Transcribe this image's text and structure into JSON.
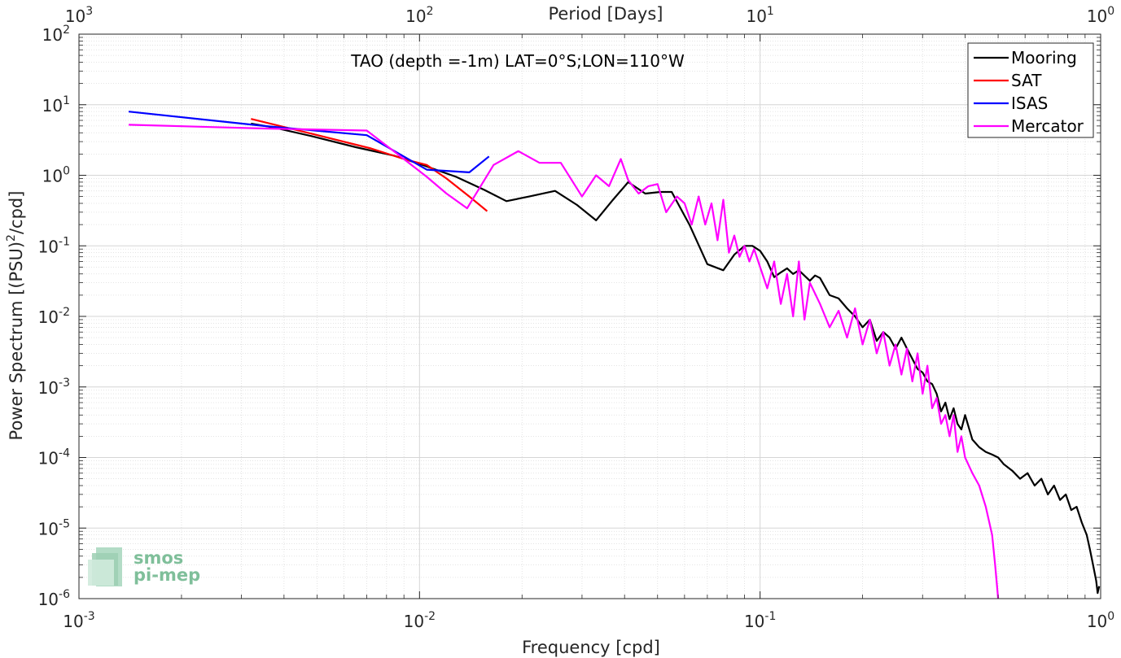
{
  "chart_data": {
    "type": "line",
    "title": "TAO (depth =-1m) LAT=0°S;LON=110°W",
    "xlabel": "Frequency [cpd]",
    "ylabel_main": "Power Spectrum [(PSU)",
    "ylabel_sup": "2",
    "ylabel_tail": "/cpd]",
    "top_xlabel": "Period [Days]",
    "xscale": "log",
    "yscale": "log",
    "xlim": [
      0.001,
      1
    ],
    "ylim": [
      1e-06,
      100
    ],
    "grid": true,
    "legend_position": "top-right",
    "x_ticks": [
      {
        "value": 0.001,
        "base": "10",
        "exp": "-3"
      },
      {
        "value": 0.01,
        "base": "10",
        "exp": "-2"
      },
      {
        "value": 0.1,
        "base": "10",
        "exp": "-1"
      },
      {
        "value": 1,
        "base": "10",
        "exp": "0"
      }
    ],
    "y_ticks": [
      {
        "value": 1e-06,
        "base": "10",
        "exp": "-6"
      },
      {
        "value": 1e-05,
        "base": "10",
        "exp": "-5"
      },
      {
        "value": 0.0001,
        "base": "10",
        "exp": "-4"
      },
      {
        "value": 0.001,
        "base": "10",
        "exp": "-3"
      },
      {
        "value": 0.01,
        "base": "10",
        "exp": "-2"
      },
      {
        "value": 0.1,
        "base": "10",
        "exp": "-1"
      },
      {
        "value": 1,
        "base": "10",
        "exp": "0"
      },
      {
        "value": 10,
        "base": "10",
        "exp": "1"
      },
      {
        "value": 100,
        "base": "10",
        "exp": "2"
      }
    ],
    "top_ticks": [
      {
        "value": 0.001,
        "base": "10",
        "exp": "3"
      },
      {
        "value": 0.01,
        "base": "10",
        "exp": "2"
      },
      {
        "value": 0.1,
        "base": "10",
        "exp": "1"
      },
      {
        "value": 1,
        "base": "10",
        "exp": "0"
      }
    ],
    "series": [
      {
        "name": "Mooring",
        "color": "#000000",
        "x": [
          0.0032,
          0.0037,
          0.0048,
          0.0065,
          0.0084,
          0.01,
          0.0128,
          0.0155,
          0.018,
          0.021,
          0.025,
          0.029,
          0.033,
          0.037,
          0.041,
          0.046,
          0.051,
          0.055,
          0.062,
          0.07,
          0.078,
          0.084,
          0.09,
          0.095,
          0.1,
          0.105,
          0.11,
          0.115,
          0.12,
          0.125,
          0.13,
          0.14,
          0.145,
          0.15,
          0.16,
          0.17,
          0.18,
          0.19,
          0.2,
          0.21,
          0.22,
          0.23,
          0.24,
          0.25,
          0.26,
          0.27,
          0.28,
          0.29,
          0.3,
          0.31,
          0.32,
          0.33,
          0.34,
          0.35,
          0.36,
          0.37,
          0.38,
          0.39,
          0.4,
          0.42,
          0.44,
          0.46,
          0.48,
          0.5,
          0.52,
          0.55,
          0.58,
          0.61,
          0.64,
          0.67,
          0.7,
          0.73,
          0.76,
          0.79,
          0.82,
          0.85,
          0.88,
          0.91,
          0.93,
          0.95,
          0.97,
          0.98,
          0.99
        ],
        "y": [
          5.4,
          4.8,
          3.6,
          2.5,
          1.9,
          1.45,
          0.95,
          0.62,
          0.43,
          0.5,
          0.6,
          0.38,
          0.23,
          0.45,
          0.8,
          0.55,
          0.58,
          0.58,
          0.2,
          0.055,
          0.045,
          0.075,
          0.1,
          0.1,
          0.085,
          0.06,
          0.036,
          0.042,
          0.048,
          0.04,
          0.045,
          0.032,
          0.038,
          0.035,
          0.02,
          0.018,
          0.013,
          0.01,
          0.007,
          0.009,
          0.0045,
          0.006,
          0.005,
          0.0035,
          0.005,
          0.0035,
          0.0025,
          0.0018,
          0.0016,
          0.0012,
          0.0011,
          0.0008,
          0.00045,
          0.0006,
          0.00035,
          0.0005,
          0.0003,
          0.00025,
          0.0004,
          0.00018,
          0.00014,
          0.00012,
          0.00011,
          0.0001,
          8e-05,
          6.5e-05,
          5e-05,
          6e-05,
          4e-05,
          5e-05,
          3e-05,
          4e-05,
          2.5e-05,
          3e-05,
          1.8e-05,
          2e-05,
          1.2e-05,
          8e-06,
          5e-06,
          3e-06,
          1.8e-06,
          1.2e-06,
          1.5e-06
        ]
      },
      {
        "name": "SAT",
        "color": "#ff0000",
        "x": [
          0.0032,
          0.0048,
          0.0072,
          0.009,
          0.0105,
          0.012,
          0.014,
          0.0158
        ],
        "y": [
          6.3,
          3.9,
          2.4,
          1.7,
          1.4,
          0.9,
          0.5,
          0.31
        ]
      },
      {
        "name": "ISAS",
        "color": "#0000ff",
        "x": [
          0.0014,
          0.0035,
          0.007,
          0.0105,
          0.014,
          0.016
        ],
        "y": [
          8.0,
          5.0,
          3.7,
          1.2,
          1.1,
          1.85
        ]
      },
      {
        "name": "Mercator",
        "color": "#ff00ff",
        "x": [
          0.0014,
          0.0035,
          0.007,
          0.0085,
          0.0105,
          0.012,
          0.0138,
          0.0165,
          0.0195,
          0.0225,
          0.026,
          0.03,
          0.033,
          0.036,
          0.039,
          0.041,
          0.044,
          0.047,
          0.05,
          0.053,
          0.057,
          0.06,
          0.063,
          0.066,
          0.069,
          0.072,
          0.075,
          0.078,
          0.081,
          0.084,
          0.087,
          0.09,
          0.093,
          0.096,
          0.1,
          0.105,
          0.11,
          0.115,
          0.12,
          0.125,
          0.13,
          0.135,
          0.14,
          0.15,
          0.16,
          0.17,
          0.18,
          0.19,
          0.2,
          0.21,
          0.22,
          0.23,
          0.24,
          0.25,
          0.26,
          0.27,
          0.28,
          0.29,
          0.3,
          0.31,
          0.32,
          0.33,
          0.34,
          0.35,
          0.36,
          0.37,
          0.38,
          0.39,
          0.4,
          0.42,
          0.44,
          0.46,
          0.48,
          0.49,
          0.5
        ],
        "y": [
          5.2,
          4.6,
          4.3,
          2.1,
          0.95,
          0.55,
          0.34,
          1.4,
          2.2,
          1.5,
          1.5,
          0.5,
          1.0,
          0.7,
          1.7,
          0.85,
          0.55,
          0.7,
          0.75,
          0.3,
          0.5,
          0.4,
          0.2,
          0.5,
          0.2,
          0.4,
          0.12,
          0.45,
          0.08,
          0.14,
          0.07,
          0.1,
          0.06,
          0.09,
          0.05,
          0.025,
          0.06,
          0.015,
          0.04,
          0.01,
          0.06,
          0.009,
          0.03,
          0.015,
          0.007,
          0.012,
          0.005,
          0.013,
          0.004,
          0.009,
          0.003,
          0.006,
          0.002,
          0.004,
          0.0015,
          0.0035,
          0.0012,
          0.003,
          0.0008,
          0.002,
          0.0005,
          0.0007,
          0.0003,
          0.0004,
          0.0002,
          0.0004,
          0.00012,
          0.0002,
          0.0001,
          6e-05,
          4e-05,
          2e-05,
          8e-06,
          3e-06,
          1e-06
        ]
      }
    ],
    "logo": {
      "line1": "smos",
      "line2": "pi-mep"
    }
  }
}
